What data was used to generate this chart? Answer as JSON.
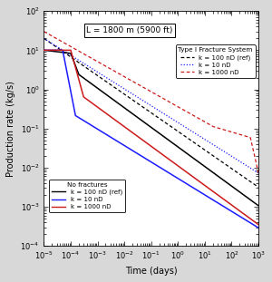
{
  "title_box": "L = 1800 m (5900 ft)",
  "xlabel": "Time (days)",
  "ylabel": "Production rate (kg/s)",
  "xlim": [
    -5,
    3
  ],
  "ylim": [
    -4,
    2
  ],
  "legend1_title": "Type I Fracture System",
  "legend2_title": "No fractures",
  "col_black": "#000000",
  "col_blue": "#1a1aff",
  "col_red": "#cc1a1a",
  "background_color": "#d8d8d8",
  "plot_bg_color": "#ffffff"
}
